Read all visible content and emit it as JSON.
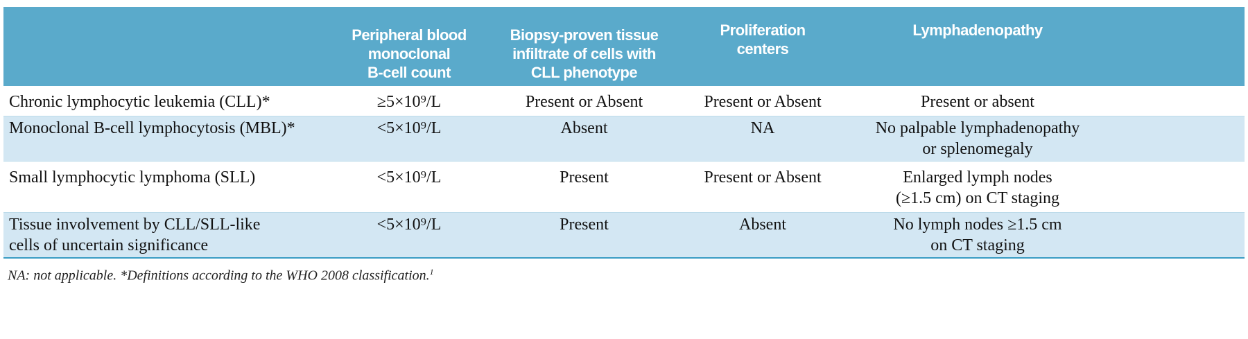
{
  "table": {
    "headers": [
      "",
      "Peripheral blood monoclonal B-cell count",
      "Biopsy-proven tissue infiltrate of cells with CLL phenotype",
      "Proliferation centers",
      "Lymphadenopathy"
    ],
    "header_lines": [
      [],
      [
        "Peripheral blood",
        "monoclonal",
        "B-cell count"
      ],
      [
        "Biopsy-proven tissue",
        "infiltrate of cells with",
        "CLL phenotype"
      ],
      [
        "Proliferation",
        "centers"
      ],
      [
        "Lymphadenopathy"
      ]
    ],
    "rows": [
      {
        "name": [
          "Chronic lymphocytic leukemia (CLL)*"
        ],
        "count": "≥5×10⁹/L",
        "infiltrate": "Present or Absent",
        "proliferation": "Present or Absent",
        "lymph": [
          "Present or absent"
        ]
      },
      {
        "name": [
          "Monoclonal B-cell lymphocytosis (MBL)*"
        ],
        "count": "<5×10⁹/L",
        "infiltrate": "Absent",
        "proliferation": "NA",
        "lymph": [
          "No palpable lymphadenopathy",
          "or splenomegaly"
        ]
      },
      {
        "name": [
          "Small lymphocytic lymphoma (SLL)"
        ],
        "count": "<5×10⁹/L",
        "infiltrate": "Present",
        "proliferation": "Present or Absent",
        "lymph": [
          "Enlarged lymph nodes",
          "(≥1.5 cm) on CT staging"
        ]
      },
      {
        "name": [
          "Tissue involvement by CLL/SLL-like",
          "cells of uncertain significance"
        ],
        "count": "<5×10⁹/L",
        "infiltrate": "Present",
        "proliferation": "Absent",
        "lymph": [
          "No lymph nodes ≥1.5 cm",
          "on CT staging"
        ]
      }
    ]
  },
  "footnote": {
    "text": "NA: not applicable. *Definitions according to the WHO 2008 classification.",
    "ref": "1"
  },
  "colors": {
    "header_bg": "#5aaacb",
    "row_shade": "#d3e7f3",
    "rule": "#3a9cc4"
  }
}
